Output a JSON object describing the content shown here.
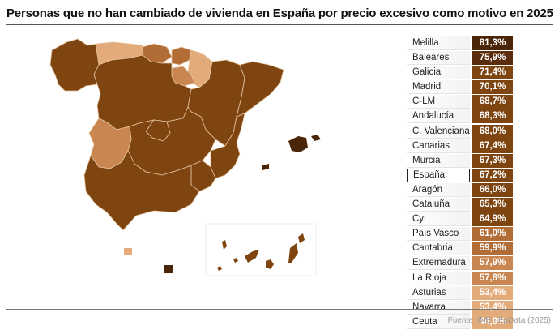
{
  "title": "Personas que no han cambiado de vivienda en España por precio excesivo como motivo en 2025",
  "source": "Fuente: INE - EpData (2025)",
  "colors": {
    "darkest": "#4a2508",
    "dark": "#5a2e0c",
    "base": "#7e4510",
    "mid": "#b26c35",
    "light": "#c98650",
    "lightest": "#e3ab7a",
    "border": "#e6c59f"
  },
  "table": {
    "rows": [
      {
        "region": "Melilla",
        "value": "81,3%",
        "color": "#4a2508"
      },
      {
        "region": "Baleares",
        "value": "75,9%",
        "color": "#5a2e0c"
      },
      {
        "region": "Galicia",
        "value": "71,4%",
        "color": "#7e4510"
      },
      {
        "region": "Madrid",
        "value": "70,1%",
        "color": "#7e4510"
      },
      {
        "region": "C-LM",
        "value": "68,7%",
        "color": "#7e4510"
      },
      {
        "region": "Andalucía",
        "value": "68,3%",
        "color": "#7e4510"
      },
      {
        "region": "C. Valenciana",
        "value": "68,0%",
        "color": "#7e4510"
      },
      {
        "region": "Canarias",
        "value": "67,4%",
        "color": "#7e4510"
      },
      {
        "region": "Murcia",
        "value": "67,3%",
        "color": "#7e4510"
      },
      {
        "region": "España",
        "value": "67,2%",
        "color": "#7e4510",
        "highlight": true
      },
      {
        "region": "Aragón",
        "value": "66,0%",
        "color": "#7e4510"
      },
      {
        "region": "Cataluña",
        "value": "65,3%",
        "color": "#7e4510"
      },
      {
        "region": "CyL",
        "value": "64,9%",
        "color": "#7e4510"
      },
      {
        "region": "País Vasco",
        "value": "61,0%",
        "color": "#b26c35"
      },
      {
        "region": "Cantabria",
        "value": "59,9%",
        "color": "#b26c35"
      },
      {
        "region": "Extremadura",
        "value": "57,9%",
        "color": "#c98650"
      },
      {
        "region": "La Rioja",
        "value": "57,8%",
        "color": "#c98650"
      },
      {
        "region": "Asturias",
        "value": "53,4%",
        "color": "#e3ab7a"
      },
      {
        "region": "Navarra",
        "value": "53,4%",
        "color": "#e3ab7a"
      },
      {
        "region": "Ceuta",
        "value": "44,8%",
        "color": "#e3ab7a"
      }
    ]
  },
  "chart_data": {
    "type": "table",
    "title": "Personas que no han cambiado de vivienda en España por precio excesivo como motivo en 2025",
    "categories": [
      "Melilla",
      "Baleares",
      "Galicia",
      "Madrid",
      "C-LM",
      "Andalucía",
      "C. Valenciana",
      "Canarias",
      "Murcia",
      "España",
      "Aragón",
      "Cataluña",
      "CyL",
      "País Vasco",
      "Cantabria",
      "Extremadura",
      "La Rioja",
      "Asturias",
      "Navarra",
      "Ceuta"
    ],
    "values": [
      81.3,
      75.9,
      71.4,
      70.1,
      68.7,
      68.3,
      68.0,
      67.4,
      67.3,
      67.2,
      66.0,
      65.3,
      64.9,
      61.0,
      59.9,
      57.9,
      57.8,
      53.4,
      53.4,
      44.8
    ],
    "unit": "%",
    "extra": "Choropleth map of Spain by autonomous community colored with the same scale",
    "source": "Fuente: INE - EpData (2025)"
  }
}
